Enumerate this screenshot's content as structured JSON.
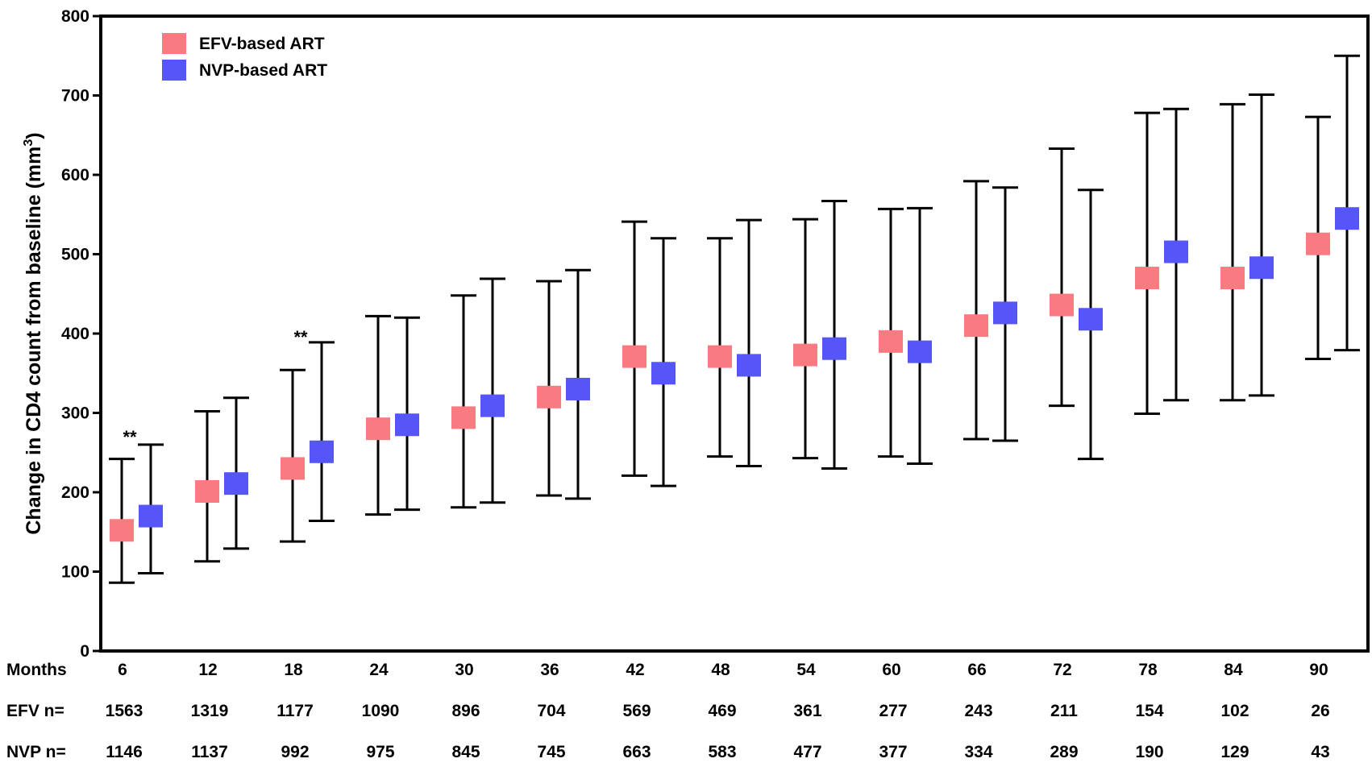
{
  "chart_data": {
    "type": "scatter",
    "ylabel": "Change in CD4 count from baseline (mm",
    "ylabel_sup": "3",
    "ylabel_close": ")",
    "ylim": [
      0,
      800
    ],
    "yticks": [
      "0",
      "100",
      "200",
      "300",
      "400",
      "500",
      "600",
      "700",
      "800"
    ],
    "grid": false,
    "legend_position": "top-left",
    "categories": [
      "6",
      "12",
      "18",
      "24",
      "30",
      "36",
      "42",
      "48",
      "54",
      "60",
      "66",
      "72",
      "78",
      "84",
      "90"
    ],
    "series": [
      {
        "name": "EFV-based ART",
        "color": "#fa7a82",
        "values": [
          152,
          201,
          230,
          280,
          294,
          320,
          371,
          371,
          373,
          390,
          410,
          436,
          470,
          470,
          513
        ],
        "upper": [
          242,
          302,
          354,
          422,
          448,
          466,
          541,
          520,
          544,
          557,
          592,
          633,
          678,
          689,
          673
        ],
        "lower": [
          86,
          113,
          138,
          172,
          181,
          196,
          221,
          245,
          243,
          245,
          267,
          309,
          299,
          316,
          368
        ]
      },
      {
        "name": "NVP-based ART",
        "color": "#5555f8",
        "values": [
          170,
          211,
          251,
          285,
          309,
          330,
          350,
          360,
          381,
          377,
          426,
          418,
          503,
          483,
          545
        ],
        "upper": [
          260,
          319,
          389,
          420,
          469,
          480,
          520,
          543,
          567,
          558,
          584,
          581,
          683,
          701,
          750
        ],
        "lower": [
          98,
          129,
          164,
          178,
          187,
          192,
          208,
          233,
          230,
          236,
          265,
          242,
          316,
          322,
          379
        ]
      }
    ],
    "annotations": [
      {
        "text": "**",
        "category": "6",
        "value": 270
      },
      {
        "text": "**",
        "category": "18",
        "value": 396
      }
    ],
    "table": {
      "row_labels": [
        "Months",
        "EFV n=",
        "NVP n="
      ],
      "efv_n": [
        "1563",
        "1319",
        "1177",
        "1090",
        "896",
        "704",
        "569",
        "469",
        "361",
        "277",
        "243",
        "211",
        "154",
        "102",
        "26"
      ],
      "nvp_n": [
        "1146",
        "1137",
        "992",
        "975",
        "845",
        "745",
        "663",
        "583",
        "477",
        "377",
        "334",
        "289",
        "190",
        "129",
        "43"
      ]
    }
  }
}
